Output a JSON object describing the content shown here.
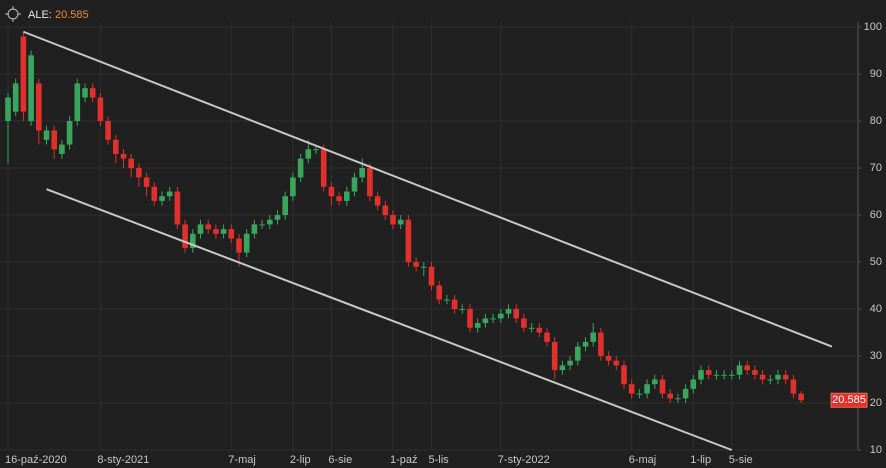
{
  "chart_data": {
    "type": "candlestick",
    "symbol": "ALE:",
    "categories": [
      "16-paź-2020",
      null,
      null,
      null,
      null,
      null,
      null,
      null,
      null,
      null,
      null,
      null,
      "8-sty-2021",
      null,
      null,
      null,
      null,
      null,
      null,
      null,
      null,
      null,
      null,
      null,
      null,
      null,
      null,
      null,
      null,
      "7-maj",
      null,
      null,
      null,
      null,
      null,
      null,
      null,
      "2-lip",
      null,
      null,
      null,
      null,
      "6-sie",
      null,
      null,
      null,
      null,
      null,
      null,
      null,
      "1-paź",
      null,
      null,
      null,
      null,
      "5-lis",
      null,
      null,
      null,
      null,
      null,
      null,
      null,
      null,
      "7-sty-2022",
      null,
      null,
      null,
      null,
      null,
      null,
      null,
      null,
      null,
      null,
      null,
      null,
      null,
      null,
      null,
      null,
      "6-maj",
      null,
      null,
      null,
      null,
      null,
      null,
      null,
      "1-lip",
      null,
      null,
      null,
      null,
      "5-sie",
      null,
      null,
      null,
      null,
      null,
      null,
      null,
      null,
      null
    ],
    "open": [
      80,
      82,
      98,
      80,
      88,
      76,
      78,
      73,
      75,
      80,
      85,
      87,
      85,
      80,
      76,
      73,
      72,
      70,
      68,
      66,
      63,
      64,
      65,
      58,
      53,
      56,
      58,
      57,
      56,
      57,
      55,
      52,
      56,
      58,
      58,
      59,
      60,
      64,
      68,
      72,
      74,
      74,
      66,
      64,
      63,
      65,
      68,
      70,
      64,
      62,
      60,
      58,
      59,
      50,
      49,
      49,
      45,
      42,
      42,
      40,
      40,
      36,
      37,
      38,
      38,
      39,
      40,
      38,
      36,
      36,
      35,
      33,
      27,
      28,
      29,
      32,
      33,
      35,
      30,
      29,
      28,
      24,
      22,
      22,
      24,
      25,
      22,
      21,
      21,
      23,
      25,
      27,
      26,
      26,
      26,
      26,
      28,
      27,
      26,
      25,
      25,
      26,
      25,
      22
    ],
    "high": [
      86,
      89,
      99,
      95,
      89,
      79,
      79,
      76,
      81,
      89,
      88,
      88,
      86,
      81,
      77,
      74,
      73,
      71,
      69,
      67,
      65,
      66,
      66,
      59,
      57,
      59,
      59,
      58,
      58,
      58,
      56,
      57,
      59,
      59,
      60,
      61,
      65,
      69,
      73,
      76,
      75,
      75,
      67,
      65,
      66,
      69,
      72,
      71,
      65,
      63,
      61,
      60,
      60,
      51,
      50,
      50,
      46,
      43,
      43,
      41,
      41,
      38,
      39,
      39,
      40,
      41,
      41,
      39,
      37,
      37,
      36,
      34,
      29,
      30,
      33,
      34,
      37,
      36,
      31,
      30,
      29,
      25,
      23,
      25,
      26,
      26,
      23,
      22,
      24,
      26,
      28,
      28,
      27,
      27,
      27,
      29,
      29,
      28,
      27,
      26,
      27,
      27,
      26,
      22.5
    ],
    "low": [
      71,
      81,
      80,
      79,
      75,
      75,
      72,
      72,
      74,
      79,
      84,
      84,
      79,
      75,
      71,
      70,
      68,
      66,
      64,
      62,
      62,
      63,
      57,
      52,
      52,
      55,
      56,
      55,
      55,
      54,
      49,
      51,
      55,
      57,
      57,
      58,
      59,
      63,
      67,
      71,
      73,
      65,
      62,
      62,
      62,
      64,
      67,
      63,
      61,
      59,
      57,
      57,
      49,
      48,
      47,
      44,
      41,
      41,
      39,
      39,
      35,
      35,
      36,
      37,
      37,
      38,
      37,
      35,
      35,
      34,
      32,
      25,
      26,
      27,
      28,
      31,
      32,
      29,
      28,
      27,
      23,
      21,
      21,
      21,
      23,
      21,
      20,
      20,
      20,
      22,
      24,
      25,
      25,
      25,
      25,
      25,
      26,
      25,
      24,
      24,
      24,
      24,
      21,
      20
    ],
    "close": [
      85,
      88,
      82,
      94,
      78,
      78,
      74,
      75,
      80,
      88,
      87,
      85,
      80,
      76,
      73,
      72,
      70,
      68,
      66,
      63,
      64,
      65,
      58,
      53,
      56,
      58,
      57,
      56,
      57,
      55,
      52,
      56,
      58,
      58,
      59,
      60,
      64,
      68,
      72,
      74,
      74,
      66,
      64,
      63,
      65,
      68,
      70,
      64,
      62,
      60,
      58,
      59,
      50,
      49,
      49,
      45,
      42,
      42,
      40,
      40,
      36,
      37,
      38,
      38,
      39,
      40,
      38,
      36,
      36,
      35,
      33,
      27,
      28,
      29,
      32,
      33,
      35,
      30,
      29,
      28,
      24,
      22,
      22,
      24,
      25,
      22,
      21,
      21,
      23,
      25,
      27,
      26,
      26,
      26,
      26,
      28,
      27,
      26,
      25,
      25,
      26,
      25,
      22,
      20.585
    ],
    "up_color": "#3aa55d",
    "down_color": "#e0312c",
    "trendlines": [
      {
        "x": [
          2,
          107
        ],
        "y": [
          99,
          32
        ]
      },
      {
        "x": [
          5,
          94
        ],
        "y": [
          65.5,
          10
        ]
      }
    ],
    "ylim": [
      10,
      101.5
    ],
    "yticks": [
      10,
      20,
      30,
      40,
      50,
      60,
      70,
      80,
      90,
      100
    ],
    "grid": true
  }
}
